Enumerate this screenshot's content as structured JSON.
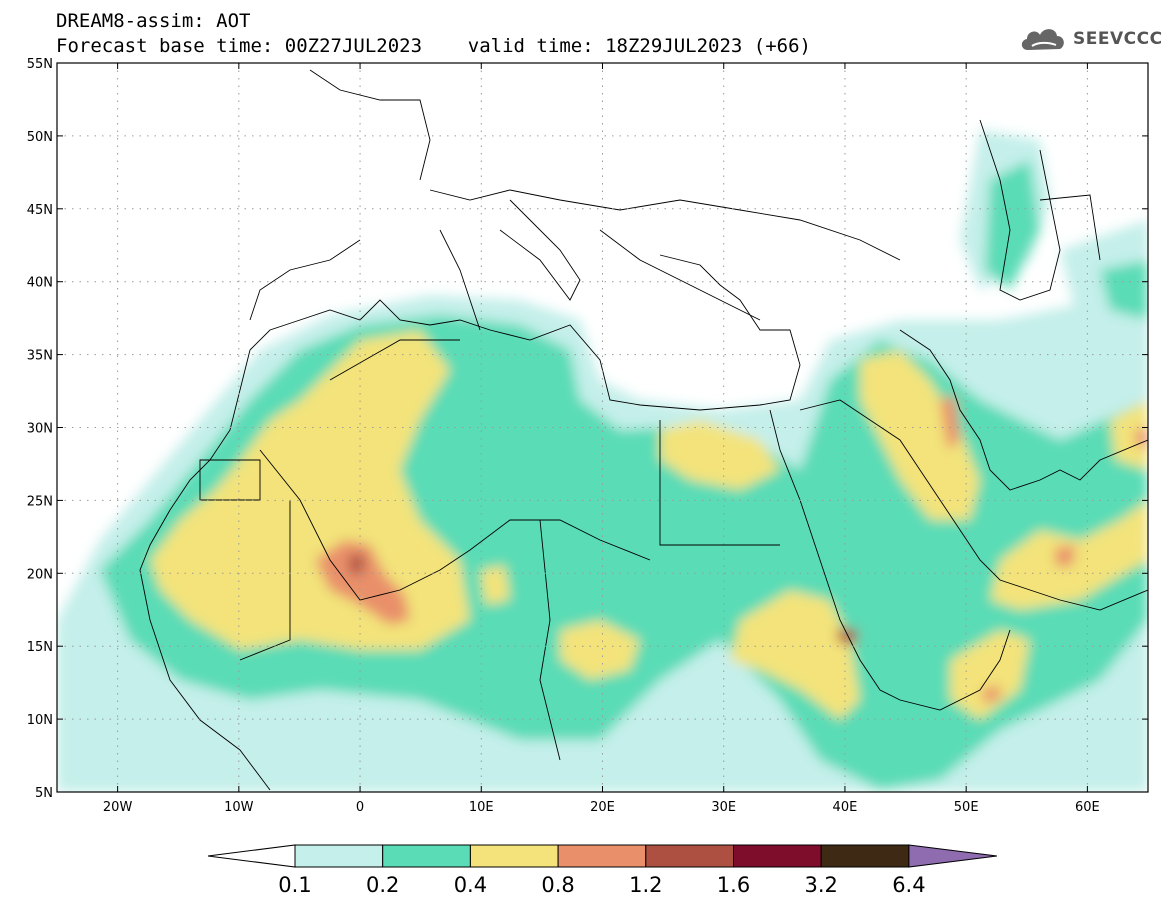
{
  "header": {
    "line1": "DREAM8-assim: AOT",
    "line2": "Forecast base time: 00Z27JUL2023    valid time: 18Z29JUL2023 (+66)"
  },
  "logo": {
    "text": "SEEVCCC",
    "icon": "cloud-icon"
  },
  "map": {
    "lon_range": [
      -25,
      65
    ],
    "lat_range": [
      5,
      55
    ],
    "lat_ticks": [
      "55N",
      "50N",
      "45N",
      "40N",
      "35N",
      "30N",
      "25N",
      "20N",
      "15N",
      "10N",
      "5N"
    ],
    "lat_values": [
      55,
      50,
      45,
      40,
      35,
      30,
      25,
      20,
      15,
      10,
      5
    ],
    "lon_ticks": [
      "20W",
      "10W",
      "0",
      "10E",
      "20E",
      "30E",
      "40E",
      "50E",
      "60E"
    ],
    "lon_values": [
      -20,
      -10,
      0,
      10,
      20,
      30,
      40,
      50,
      60
    ],
    "grid": "dotted"
  },
  "colorbar": {
    "labels": [
      "0.1",
      "0.2",
      "0.4",
      "0.8",
      "1.2",
      "1.6",
      "3.2",
      "6.4"
    ],
    "colors": [
      "#c4efea",
      "#5adcb6",
      "#f3e37a",
      "#e9906a",
      "#ad5041",
      "#7d0d2a",
      "#3e2a14",
      "#8f6bb0"
    ],
    "under_color": "#ffffff"
  }
}
